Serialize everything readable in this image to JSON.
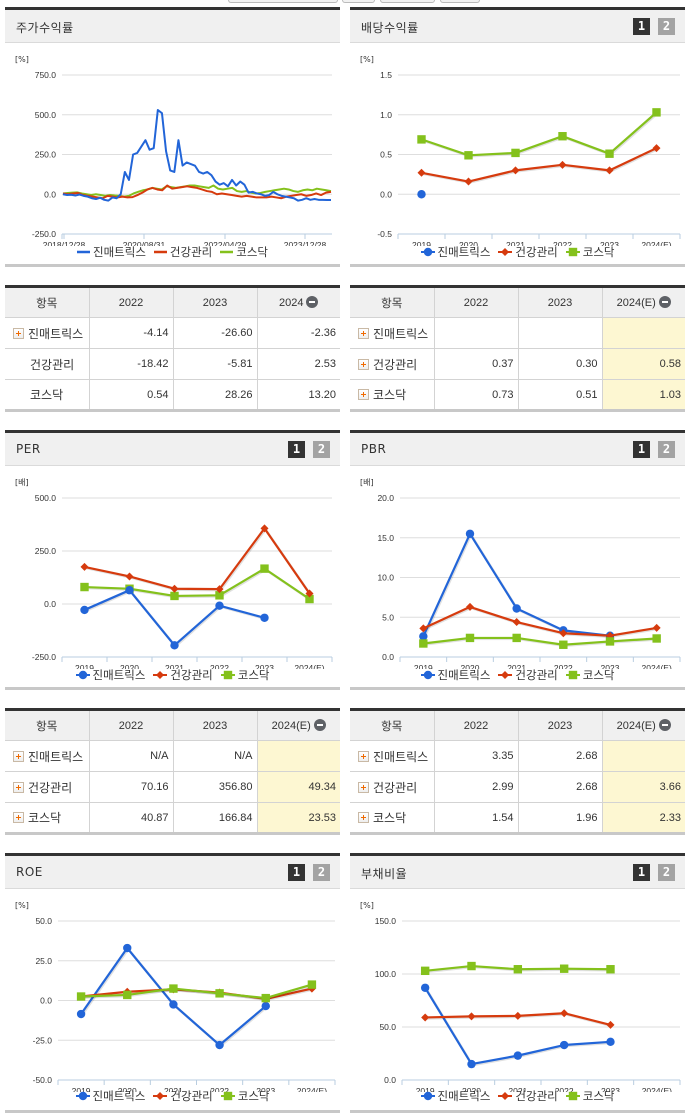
{
  "colors": {
    "series1": "#2265d8",
    "series2": "#d63b0e",
    "series3": "#84c11c",
    "estimate_bg": "#fdf7d2",
    "header_bg": "#f0f0f0"
  },
  "series_names": [
    "진매트릭스",
    "건강관리",
    "코스닥"
  ],
  "toggle_buttons": [
    "1",
    "2"
  ],
  "panels": {
    "stock_return": {
      "title": "주가수익률",
      "unit": "[%]"
    },
    "dividend_yield": {
      "title": "배당수익률",
      "unit": "[%]"
    },
    "per": {
      "title": "PER",
      "unit": "[배]"
    },
    "pbr": {
      "title": "PBR",
      "unit": "[배]"
    },
    "roe": {
      "title": "ROE",
      "unit": "[%]"
    },
    "debt_ratio": {
      "title": "부채비율",
      "unit": "[%]"
    }
  },
  "tables": {
    "stock_return": {
      "headers": [
        "항목",
        "2022",
        "2023",
        "2024"
      ],
      "rows": [
        {
          "name": "진매트릭스",
          "values": [
            "-4.14",
            "-26.60",
            "-2.36"
          ],
          "expandable": true
        },
        {
          "name": "건강관리",
          "values": [
            "-18.42",
            "-5.81",
            "2.53"
          ],
          "expandable": false
        },
        {
          "name": "코스닥",
          "values": [
            "0.54",
            "28.26",
            "13.20"
          ],
          "expandable": false
        }
      ]
    },
    "dividend_yield": {
      "headers": [
        "항목",
        "2022",
        "2023",
        "2024(E)"
      ],
      "rows": [
        {
          "name": "진매트릭스",
          "values": [
            "",
            "",
            ""
          ],
          "expandable": true
        },
        {
          "name": "건강관리",
          "values": [
            "0.37",
            "0.30",
            "0.58"
          ],
          "expandable": true
        },
        {
          "name": "코스닥",
          "values": [
            "0.73",
            "0.51",
            "1.03"
          ],
          "expandable": true
        }
      ]
    },
    "per": {
      "headers": [
        "항목",
        "2022",
        "2023",
        "2024(E)"
      ],
      "rows": [
        {
          "name": "진매트릭스",
          "values": [
            "N/A",
            "N/A",
            ""
          ],
          "expandable": true
        },
        {
          "name": "건강관리",
          "values": [
            "70.16",
            "356.80",
            "49.34"
          ],
          "expandable": true
        },
        {
          "name": "코스닥",
          "values": [
            "40.87",
            "166.84",
            "23.53"
          ],
          "expandable": true
        }
      ]
    },
    "pbr": {
      "headers": [
        "항목",
        "2022",
        "2023",
        "2024(E)"
      ],
      "rows": [
        {
          "name": "진매트릭스",
          "values": [
            "3.35",
            "2.68",
            ""
          ],
          "expandable": true
        },
        {
          "name": "건강관리",
          "values": [
            "2.99",
            "2.68",
            "3.66"
          ],
          "expandable": true
        },
        {
          "name": "코스닥",
          "values": [
            "1.54",
            "1.96",
            "2.33"
          ],
          "expandable": true
        }
      ]
    }
  },
  "chart_data": [
    {
      "id": "stock_return",
      "type": "line",
      "title": "주가수익률",
      "ylabel": "[%]",
      "ylim": [
        -250,
        750
      ],
      "yticks": [
        "750.0",
        "500.0",
        "250.0",
        "0.0",
        "-250.0"
      ],
      "xticks": [
        "2018/12/28",
        "2020/08/31",
        "2022/04/29",
        "2023/12/28"
      ],
      "grid": true,
      "legend_position": "bottom",
      "series": [
        {
          "name": "진매트릭스",
          "values": [
            0,
            -5,
            -3,
            -8,
            -2,
            -10,
            -15,
            -25,
            -30,
            -22,
            -35,
            -40,
            -20,
            -25,
            0,
            140,
            90,
            250,
            260,
            300,
            340,
            280,
            290,
            530,
            510,
            270,
            150,
            140,
            340,
            180,
            200,
            190,
            180,
            140,
            130,
            140,
            120,
            80,
            60,
            70,
            50,
            90,
            55,
            80,
            60,
            10,
            15,
            5,
            0,
            -10,
            -5,
            15,
            0,
            -10,
            -15,
            -20,
            -25,
            -40,
            -35,
            -25,
            -35,
            -30,
            -35,
            -35,
            -36,
            -36
          ]
        },
        {
          "name": "건강관리",
          "values": [
            5,
            0,
            5,
            8,
            -5,
            -10,
            -15,
            -20,
            -25,
            -10,
            -15,
            -20,
            -15,
            -20,
            -18,
            -5,
            10,
            30,
            40,
            30,
            25,
            55,
            35,
            40,
            45,
            50,
            45,
            40,
            30,
            20,
            15,
            0,
            5,
            0,
            -5,
            -10,
            -15,
            -10,
            -15,
            -20,
            -20,
            -20,
            -15,
            -20,
            -25,
            -15,
            -10,
            -5,
            0,
            -10,
            -5,
            5,
            -5,
            10,
            15
          ]
        },
        {
          "name": "코스닥",
          "values": [
            5,
            8,
            10,
            12,
            5,
            0,
            -5,
            0,
            -5,
            -10,
            -5,
            -8,
            -10,
            -15,
            -10,
            5,
            15,
            25,
            30,
            40,
            35,
            30,
            50,
            45,
            40,
            45,
            50,
            55,
            55,
            50,
            45,
            40,
            55,
            35,
            30,
            35,
            40,
            20,
            15,
            20,
            10,
            5,
            8,
            15,
            20,
            25,
            30,
            35,
            30,
            20,
            15,
            25,
            30,
            25,
            35,
            30,
            25,
            20
          ]
        }
      ]
    },
    {
      "id": "dividend_yield",
      "type": "line",
      "title": "배당수익률",
      "ylabel": "[%]",
      "ylim": [
        -0.5,
        1.5
      ],
      "yticks": [
        "1.5",
        "1.0",
        "0.5",
        "0.0",
        "-0.5"
      ],
      "categories": [
        "2019",
        "2020",
        "2021",
        "2022",
        "2023",
        "2024(E)"
      ],
      "grid": true,
      "legend_position": "bottom",
      "series": [
        {
          "name": "진매트릭스",
          "values": [
            0.0,
            null,
            null,
            null,
            null,
            null
          ]
        },
        {
          "name": "건강관리",
          "values": [
            0.27,
            0.16,
            0.3,
            0.37,
            0.3,
            0.58
          ]
        },
        {
          "name": "코스닥",
          "values": [
            0.69,
            0.49,
            0.52,
            0.73,
            0.51,
            1.03
          ]
        }
      ]
    },
    {
      "id": "per",
      "type": "line",
      "title": "PER",
      "ylabel": "[배]",
      "ylim": [
        -250,
        500
      ],
      "yticks": [
        "500.0",
        "250.0",
        "0.0",
        "-250.0"
      ],
      "categories": [
        "2019",
        "2020",
        "2021",
        "2022",
        "2023",
        "2024(E)"
      ],
      "grid": true,
      "legend_position": "bottom",
      "series": [
        {
          "name": "진매트릭스",
          "values": [
            -28,
            65,
            -195,
            -8,
            -65,
            null
          ]
        },
        {
          "name": "건강관리",
          "values": [
            175,
            130,
            72,
            70.16,
            356.8,
            49.34
          ]
        },
        {
          "name": "코스닥",
          "values": [
            80,
            72,
            38,
            40.87,
            166.84,
            23.53
          ]
        }
      ]
    },
    {
      "id": "pbr",
      "type": "line",
      "title": "PBR",
      "ylabel": "[배]",
      "ylim": [
        0,
        20
      ],
      "yticks": [
        "20.0",
        "15.0",
        "10.0",
        "5.0",
        "0.0"
      ],
      "categories": [
        "2019",
        "2020",
        "2021",
        "2022",
        "2023",
        "2024(E)"
      ],
      "grid": true,
      "legend_position": "bottom",
      "series": [
        {
          "name": "진매트릭스",
          "values": [
            2.6,
            15.5,
            6.1,
            3.35,
            2.68,
            null
          ]
        },
        {
          "name": "건강관리",
          "values": [
            3.6,
            6.3,
            4.4,
            2.99,
            2.68,
            3.66
          ]
        },
        {
          "name": "코스닥",
          "values": [
            1.7,
            2.4,
            2.4,
            1.54,
            1.96,
            2.33
          ]
        }
      ]
    },
    {
      "id": "roe",
      "type": "line",
      "title": "ROE",
      "ylabel": "[%]",
      "ylim": [
        -50,
        50
      ],
      "yticks": [
        "50.0",
        "25.0",
        "0.0",
        "-25.0",
        "-50.0"
      ],
      "categories": [
        "2019",
        "2020",
        "2021",
        "2022",
        "2023",
        "2024(E)"
      ],
      "grid": true,
      "legend_position": "bottom",
      "series": [
        {
          "name": "진매트릭스",
          "values": [
            -8.5,
            33,
            -2.5,
            -28,
            -3.5,
            null
          ]
        },
        {
          "name": "건강관리",
          "values": [
            2.5,
            5.5,
            7,
            5,
            1,
            7.5
          ]
        },
        {
          "name": "코스닥",
          "values": [
            2.5,
            3.5,
            7.5,
            4.5,
            1.5,
            10
          ]
        }
      ]
    },
    {
      "id": "debt_ratio",
      "type": "line",
      "title": "부채비율",
      "ylabel": "[%]",
      "ylim": [
        0,
        150
      ],
      "yticks": [
        "150.0",
        "100.0",
        "50.0",
        "0.0"
      ],
      "categories": [
        "2019",
        "2020",
        "2021",
        "2022",
        "2023",
        "2024(E)"
      ],
      "grid": true,
      "legend_position": "bottom",
      "series": [
        {
          "name": "진매트릭스",
          "values": [
            87,
            15,
            23,
            33,
            36,
            null
          ]
        },
        {
          "name": "건강관리",
          "values": [
            59,
            60,
            60.5,
            63,
            52,
            null
          ]
        },
        {
          "name": "코스닥",
          "values": [
            103,
            107.5,
            104.5,
            105,
            104.5,
            null
          ]
        }
      ]
    }
  ]
}
